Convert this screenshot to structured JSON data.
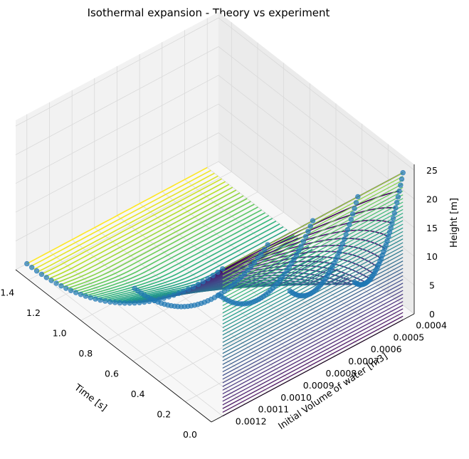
{
  "chart_data": {
    "type": "3d-surface-with-scatter",
    "title": "Isothermal expansion - Theory vs experiment",
    "xlabel": "Time [s]",
    "ylabel": "Initial Volume of water [m3]",
    "zlabel": "Height [m]",
    "x_ticks": [
      "0.0",
      "0.2",
      "0.4",
      "0.6",
      "0.8",
      "1.0",
      "1.2",
      "1.4"
    ],
    "y_ticks": [
      "0.0004",
      "0.0005",
      "0.0006",
      "0.0007",
      "0.0008",
      "0.0009",
      "0.0010",
      "0.0011",
      "0.0012"
    ],
    "z_ticks": [
      "0",
      "5",
      "10",
      "15",
      "20",
      "25"
    ],
    "xlim": [
      0,
      1.5
    ],
    "ylim": [
      0.00035,
      0.00125
    ],
    "zlim": [
      0,
      26
    ],
    "colormap": "viridis",
    "grid": true,
    "surface": {
      "description_of_model": "theoretical height vs time for each initial volume",
      "volume_range": [
        0.0004,
        0.0012
      ],
      "time_range": [
        0,
        1.5
      ]
    },
    "experiment_series": [
      {
        "volume": 0.0004,
        "t_end": 0.37
      },
      {
        "volume": 0.0006,
        "t_end": 0.52
      },
      {
        "volume": 0.0008,
        "t_end": 0.72
      },
      {
        "volume": 0.001,
        "t_end": 1.02
      },
      {
        "volume": 0.0012,
        "t_end": 1.5
      }
    ],
    "colors": {
      "scatter": "#1f77b4",
      "pane": "#f2f2f2",
      "grid": "#d9d9d9"
    }
  }
}
